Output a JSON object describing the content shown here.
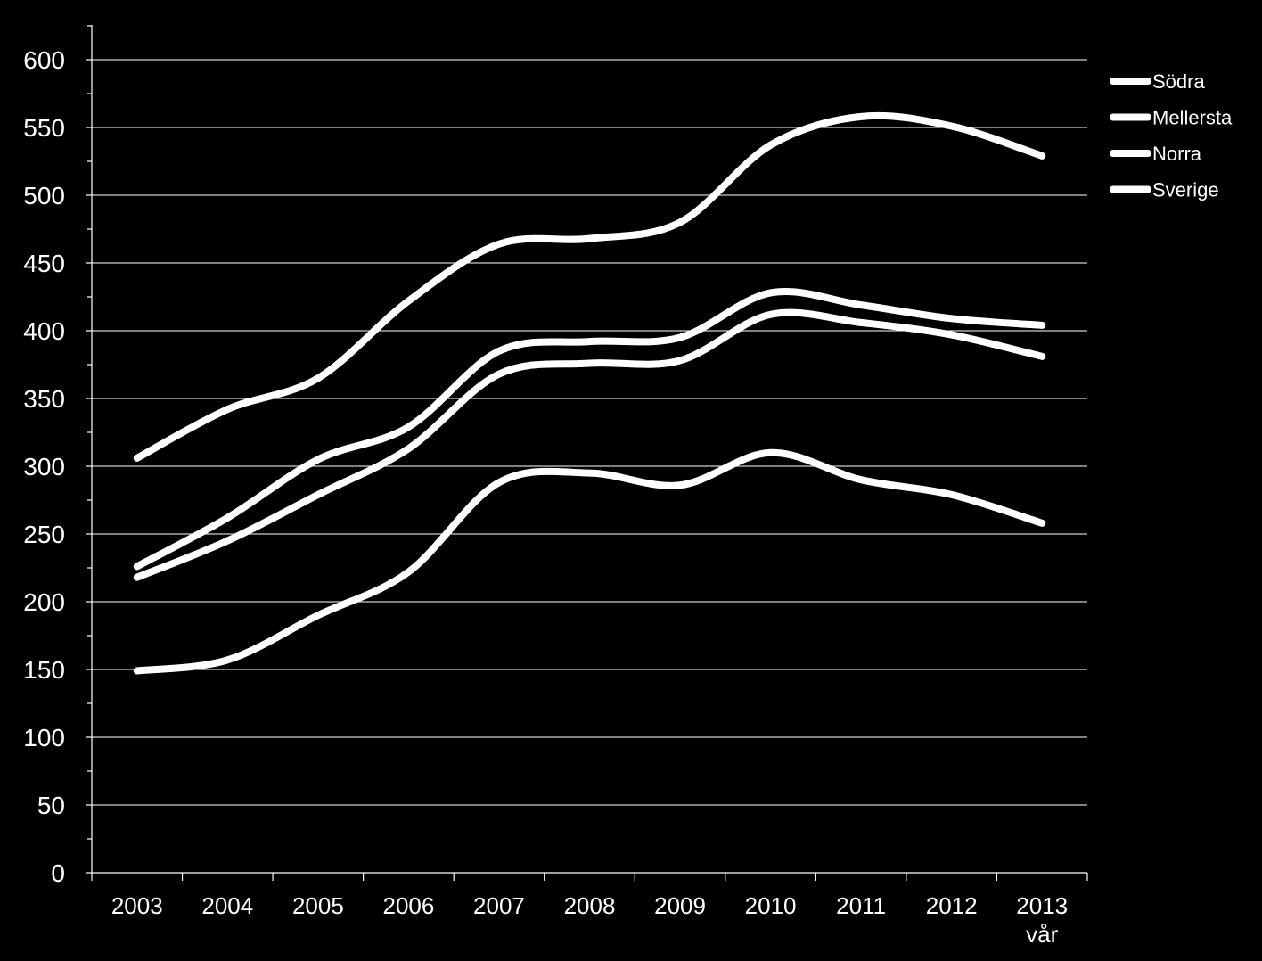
{
  "chart_data": {
    "type": "line",
    "categories": [
      "2003",
      "2004",
      "2005",
      "2006",
      "2007",
      "2008",
      "2009",
      "2010",
      "2011",
      "2012",
      "2013\nvår"
    ],
    "ylim": [
      0,
      600
    ],
    "yticks": [
      0,
      50,
      100,
      150,
      200,
      250,
      300,
      350,
      400,
      450,
      500,
      550,
      600
    ],
    "grid": true,
    "legend_position": "right",
    "series": [
      {
        "name": "Södra",
        "values": [
          306,
          342,
          365,
          422,
          464,
          468,
          480,
          537,
          558,
          551,
          529
        ]
      },
      {
        "name": "Mellersta",
        "values": [
          226,
          262,
          305,
          329,
          385,
          392,
          395,
          428,
          419,
          409,
          404
        ]
      },
      {
        "name": "Norra",
        "values": [
          149,
          157,
          190,
          222,
          288,
          295,
          286,
          310,
          290,
          279,
          258
        ]
      },
      {
        "name": "Sverige",
        "values": [
          218,
          245,
          279,
          313,
          368,
          376,
          378,
          412,
          406,
          397,
          381
        ]
      }
    ],
    "line_color": "#ffffff",
    "background_color": "#000000"
  }
}
